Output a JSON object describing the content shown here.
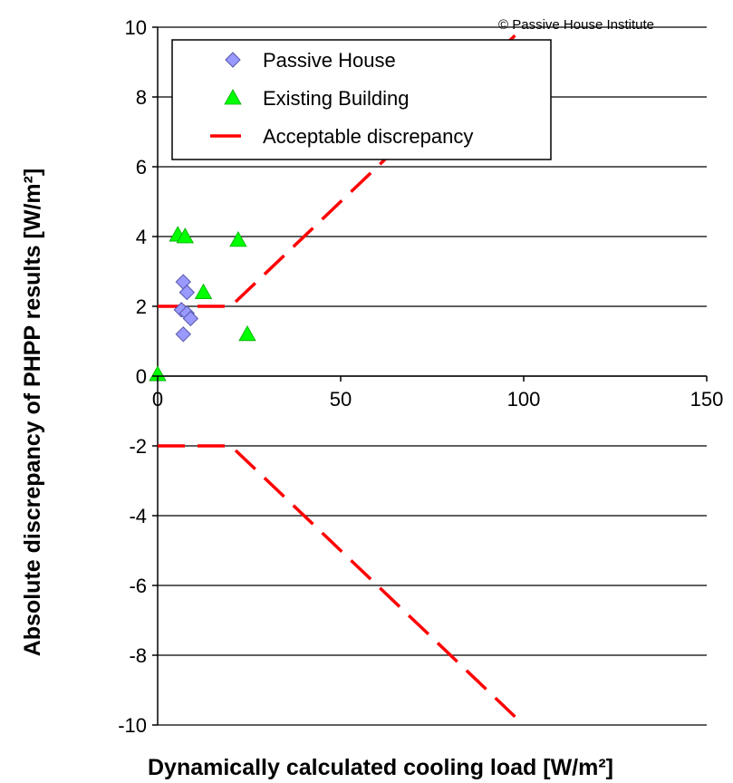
{
  "copyright": "© Passive House Institute",
  "chart_data": {
    "type": "scatter",
    "xlabel": "Dynamically calculated cooling load [W/m²]",
    "ylabel": "Absolute discrepancy of PHPP results [W/m²]",
    "xlim": [
      0,
      150
    ],
    "ylim": [
      -10,
      10
    ],
    "xticks": [
      0,
      50,
      100,
      150
    ],
    "yticks": [
      -10,
      -8,
      -6,
      -4,
      -2,
      0,
      2,
      4,
      6,
      8,
      10
    ],
    "grid": "horizontal",
    "legend_position": "top-left",
    "series": [
      {
        "name": "Passive House",
        "marker": "diamond",
        "color": "#9999FF",
        "points": [
          [
            7,
            2.7
          ],
          [
            8,
            2.4
          ],
          [
            6.5,
            1.9
          ],
          [
            8,
            1.8
          ],
          [
            9,
            1.65
          ],
          [
            7,
            1.2
          ]
        ]
      },
      {
        "name": "Existing Building",
        "marker": "triangle",
        "color": "#00FF00",
        "points": [
          [
            5.5,
            4.05
          ],
          [
            7.5,
            4.0
          ],
          [
            22,
            3.9
          ],
          [
            12.5,
            2.4
          ],
          [
            24.5,
            1.2
          ],
          [
            0,
            0.05
          ]
        ]
      },
      {
        "name": "Acceptable discrepancy",
        "marker": "dashed-line",
        "color": "#FF0000",
        "lines": [
          [
            [
              0,
              2
            ],
            [
              20,
              2
            ],
            [
              100,
              10
            ]
          ],
          [
            [
              0,
              -2
            ],
            [
              20,
              -2
            ],
            [
              100,
              -10
            ]
          ]
        ]
      }
    ]
  }
}
